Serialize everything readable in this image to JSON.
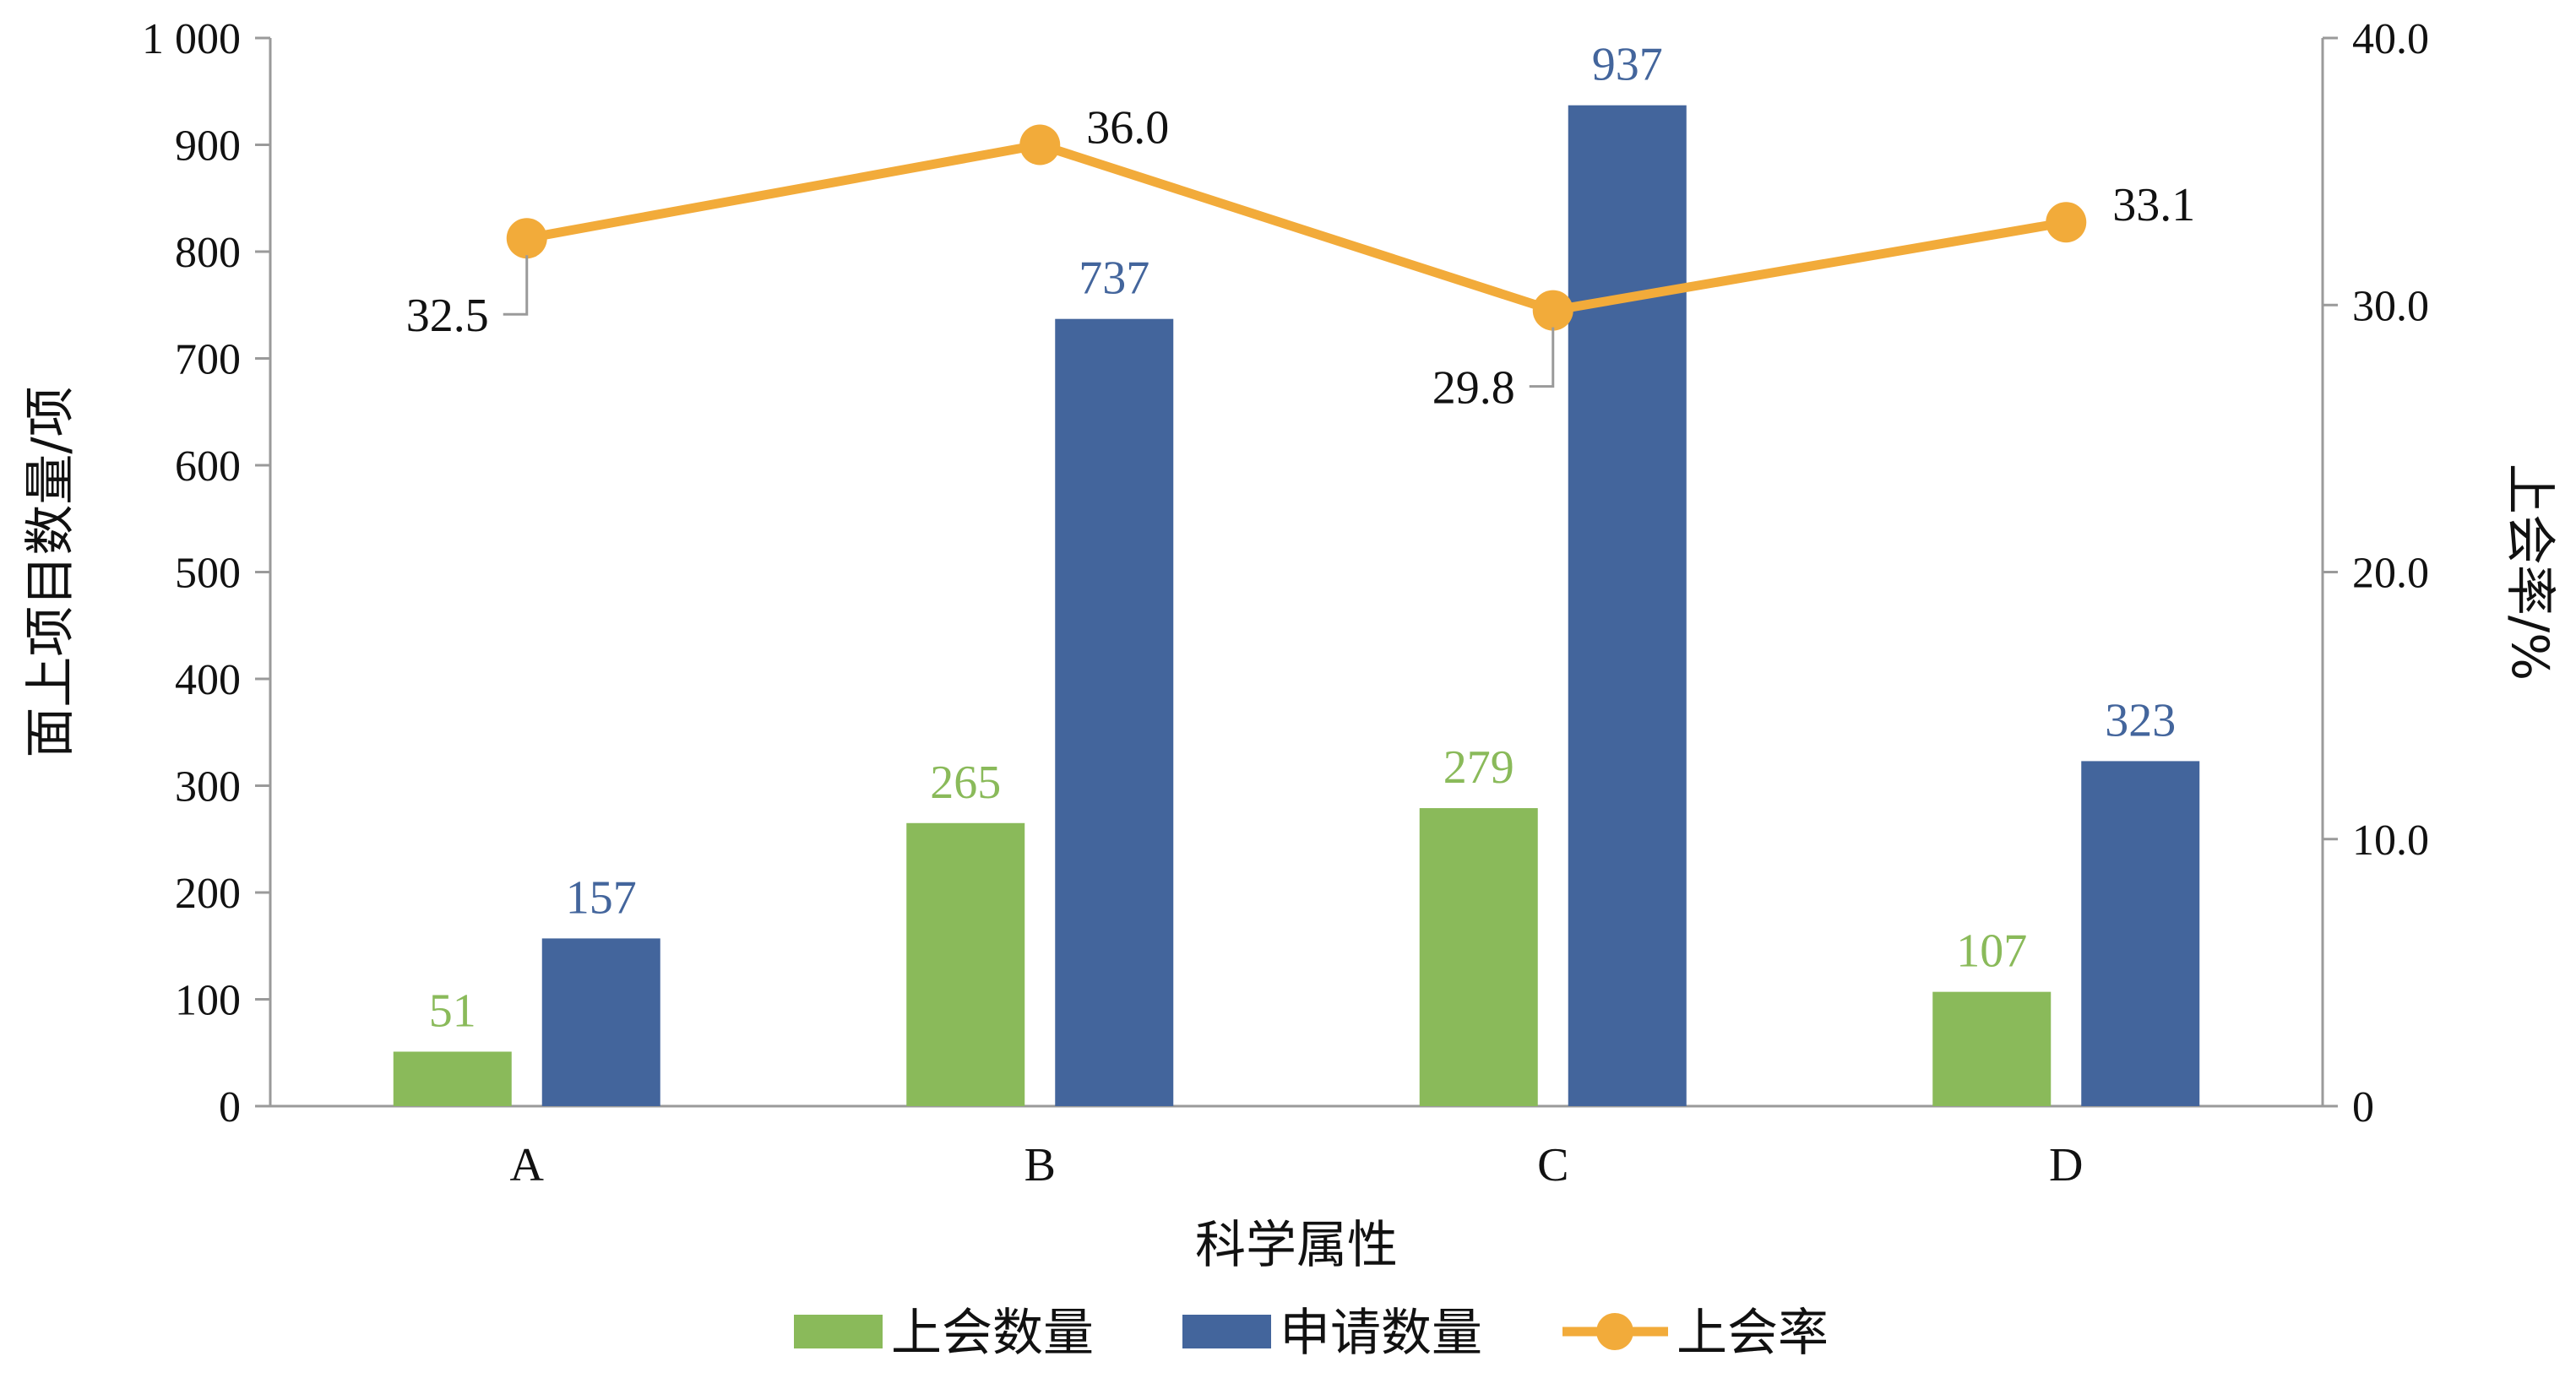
{
  "chart_data": {
    "type": "bar",
    "title": "",
    "xlabel": "科学属性",
    "ylabel": "面上项目数量/项",
    "y2label": "上会率/%",
    "categories": [
      "A",
      "B",
      "C",
      "D"
    ],
    "ylim": [
      0,
      1000
    ],
    "y2lim": [
      0,
      40
    ],
    "yticks": [
      "0",
      "100",
      "200",
      "300",
      "400",
      "500",
      "600",
      "700",
      "800",
      "900",
      "1 000"
    ],
    "y2ticks": [
      "0",
      "10.0",
      "20.0",
      "30.0",
      "40.0"
    ],
    "grid": false,
    "legend_position": "bottom",
    "series": [
      {
        "name": "上会数量",
        "type": "bar",
        "axis": "left",
        "color": "#8aba5a",
        "values": [
          51,
          265,
          279,
          107
        ],
        "labels": [
          "51",
          "265",
          "279",
          "107"
        ]
      },
      {
        "name": "申请数量",
        "type": "bar",
        "axis": "left",
        "color": "#43659c",
        "values": [
          157,
          737,
          937,
          323
        ],
        "labels": [
          "157",
          "737",
          "937",
          "323"
        ]
      },
      {
        "name": "上会率",
        "type": "line",
        "axis": "right",
        "color": "#f2ab3a",
        "values": [
          32.5,
          36.0,
          29.8,
          33.1
        ],
        "labels": [
          "32.5",
          "36.0",
          "29.8",
          "33.1"
        ]
      }
    ]
  }
}
